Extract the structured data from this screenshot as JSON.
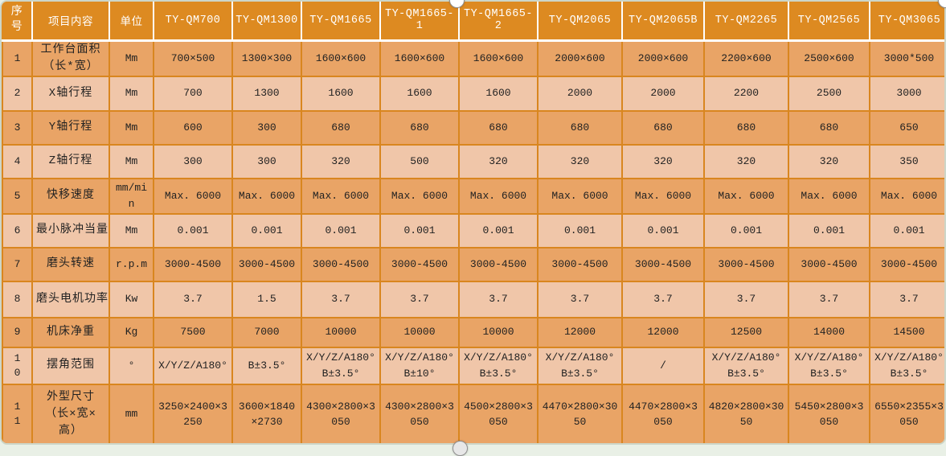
{
  "colors": {
    "page_bg": "#e9f0e6",
    "header_bg": "#dd8a21",
    "header_text": "#ffffff",
    "header_divider": "#ffffff",
    "grid": "#d9861f",
    "row_medium": "#e9a466",
    "row_light": "#f0c6a9",
    "body_text": "#222222"
  },
  "table": {
    "corner_headers": [
      "序号",
      "项目内容",
      "单位"
    ],
    "models": [
      "TY-QM700",
      "TY-QM1300",
      "TY-QM1665",
      "TY-QM1665-1",
      "TY-QM1665-2",
      "TY-QM2065",
      "TY-QM2065B",
      "TY-QM2265",
      "TY-QM2565",
      "TY-QM3065"
    ],
    "rows": [
      {
        "no": "1",
        "item": "工作台面积\n（长*宽）",
        "unit": "Mm",
        "values": [
          "700×500",
          "1300×300",
          "1600×600",
          "1600×600",
          "1600×600",
          "2000×600",
          "2000×600",
          "2200×600",
          "2500×600",
          "3000*500"
        ]
      },
      {
        "no": "2",
        "item": "X轴行程",
        "unit": "Mm",
        "values": [
          "700",
          "1300",
          "1600",
          "1600",
          "1600",
          "2000",
          "2000",
          "2200",
          "2500",
          "3000"
        ]
      },
      {
        "no": "3",
        "item": "Y轴行程",
        "unit": "Mm",
        "values": [
          "600",
          "300",
          "680",
          "680",
          "680",
          "680",
          "680",
          "680",
          "680",
          "650"
        ]
      },
      {
        "no": "4",
        "item": "Z轴行程",
        "unit": "Mm",
        "values": [
          "300",
          "300",
          "320",
          "500",
          "320",
          "320",
          "320",
          "320",
          "320",
          "350"
        ]
      },
      {
        "no": "5",
        "item": "快移速度",
        "unit": "mm/min",
        "values": [
          "Max. 6000",
          "Max. 6000",
          "Max. 6000",
          "Max. 6000",
          "Max. 6000",
          "Max. 6000",
          "Max. 6000",
          "Max. 6000",
          "Max. 6000",
          "Max. 6000"
        ]
      },
      {
        "no": "6",
        "item": "最小脉冲当量",
        "unit": "Mm",
        "values": [
          "0.001",
          "0.001",
          "0.001",
          "0.001",
          "0.001",
          "0.001",
          "0.001",
          "0.001",
          "0.001",
          "0.001"
        ]
      },
      {
        "no": "7",
        "item": "磨头转速",
        "unit": "r.p.m",
        "values": [
          "3000-4500",
          "3000-4500",
          "3000-4500",
          "3000-4500",
          "3000-4500",
          "3000-4500",
          "3000-4500",
          "3000-4500",
          "3000-4500",
          "3000-4500"
        ]
      },
      {
        "no": "8",
        "item": "磨头电机功率",
        "unit": "Kw",
        "values": [
          "3.7",
          "1.5",
          "3.7",
          "3.7",
          "3.7",
          "3.7",
          "3.7",
          "3.7",
          "3.7",
          "3.7"
        ]
      },
      {
        "no": "9",
        "item": "机床净重",
        "unit": "Kg",
        "values": [
          "7500",
          "7000",
          "10000",
          "10000",
          "10000",
          "12000",
          "12000",
          "12500",
          "14000",
          "14500"
        ]
      },
      {
        "no": "10",
        "item": "摆角范围",
        "unit": "°",
        "values": [
          "X/Y/Z/A180°",
          "B±3.5°",
          "X/Y/Z/A180°\nB±3.5°",
          "X/Y/Z/A180°\nB±10°",
          "X/Y/Z/A180°\nB±3.5°",
          "X/Y/Z/A180°\nB±3.5°",
          "/",
          "X/Y/Z/A180°\nB±3.5°",
          "X/Y/Z/A180°\nB±3.5°",
          "X/Y/Z/A180°\nB±3.5°"
        ]
      },
      {
        "no": "11",
        "item": "外型尺寸\n（长×宽×高）",
        "unit": "mm",
        "values": [
          "3250×2400×3250",
          "3600×1840×2730",
          "4300×2800×3050",
          "4300×2800×3050",
          "4500×2800×3050",
          "4470×2800×3050",
          "4470×2800×3050",
          "4820×2800×3050",
          "5450×2800×3050",
          "6550×2355×3050"
        ]
      }
    ]
  }
}
